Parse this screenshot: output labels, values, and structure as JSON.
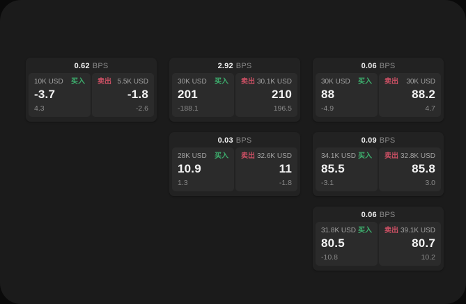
{
  "labels": {
    "bps_unit": "BPS",
    "buy": "买入",
    "sell": "卖出"
  },
  "colors": {
    "page_bg": "#0a0a0a",
    "panel_bg": "#1b1b1b",
    "card_bg": "#222222",
    "tile_bg": "#2b2b2b",
    "buy_green": "#3dae6d",
    "sell_red": "#c94f63",
    "primary_text": "#f4f4f4",
    "muted_text": "#8a8a8a"
  },
  "cards": [
    {
      "bps": "0.62",
      "buy": {
        "amount": "10K USD",
        "price": "-3.7",
        "delta": "4.3"
      },
      "sell": {
        "amount": "5.5K USD",
        "price": "-1.8",
        "delta": "-2.6"
      }
    },
    {
      "bps": "2.92",
      "buy": {
        "amount": "30K USD",
        "price": "201",
        "delta": "-188.1"
      },
      "sell": {
        "amount": "30.1K USD",
        "price": "210",
        "delta": "196.5"
      }
    },
    {
      "bps": "0.06",
      "buy": {
        "amount": "30K USD",
        "price": "88",
        "delta": "-4.9"
      },
      "sell": {
        "amount": "30K USD",
        "price": "88.2",
        "delta": "4.7"
      }
    },
    {
      "bps": "0.03",
      "buy": {
        "amount": "28K USD",
        "price": "10.9",
        "delta": "1.3"
      },
      "sell": {
        "amount": "32.6K USD",
        "price": "11",
        "delta": "-1.8"
      }
    },
    {
      "bps": "0.09",
      "buy": {
        "amount": "34.1K USD",
        "price": "85.5",
        "delta": "-3.1"
      },
      "sell": {
        "amount": "32.8K USD",
        "price": "85.8",
        "delta": "3.0"
      }
    },
    {
      "bps": "0.06",
      "buy": {
        "amount": "31.8K USD",
        "price": "80.5",
        "delta": "-10.8"
      },
      "sell": {
        "amount": "39.1K USD",
        "price": "80.7",
        "delta": "10.2"
      }
    }
  ]
}
